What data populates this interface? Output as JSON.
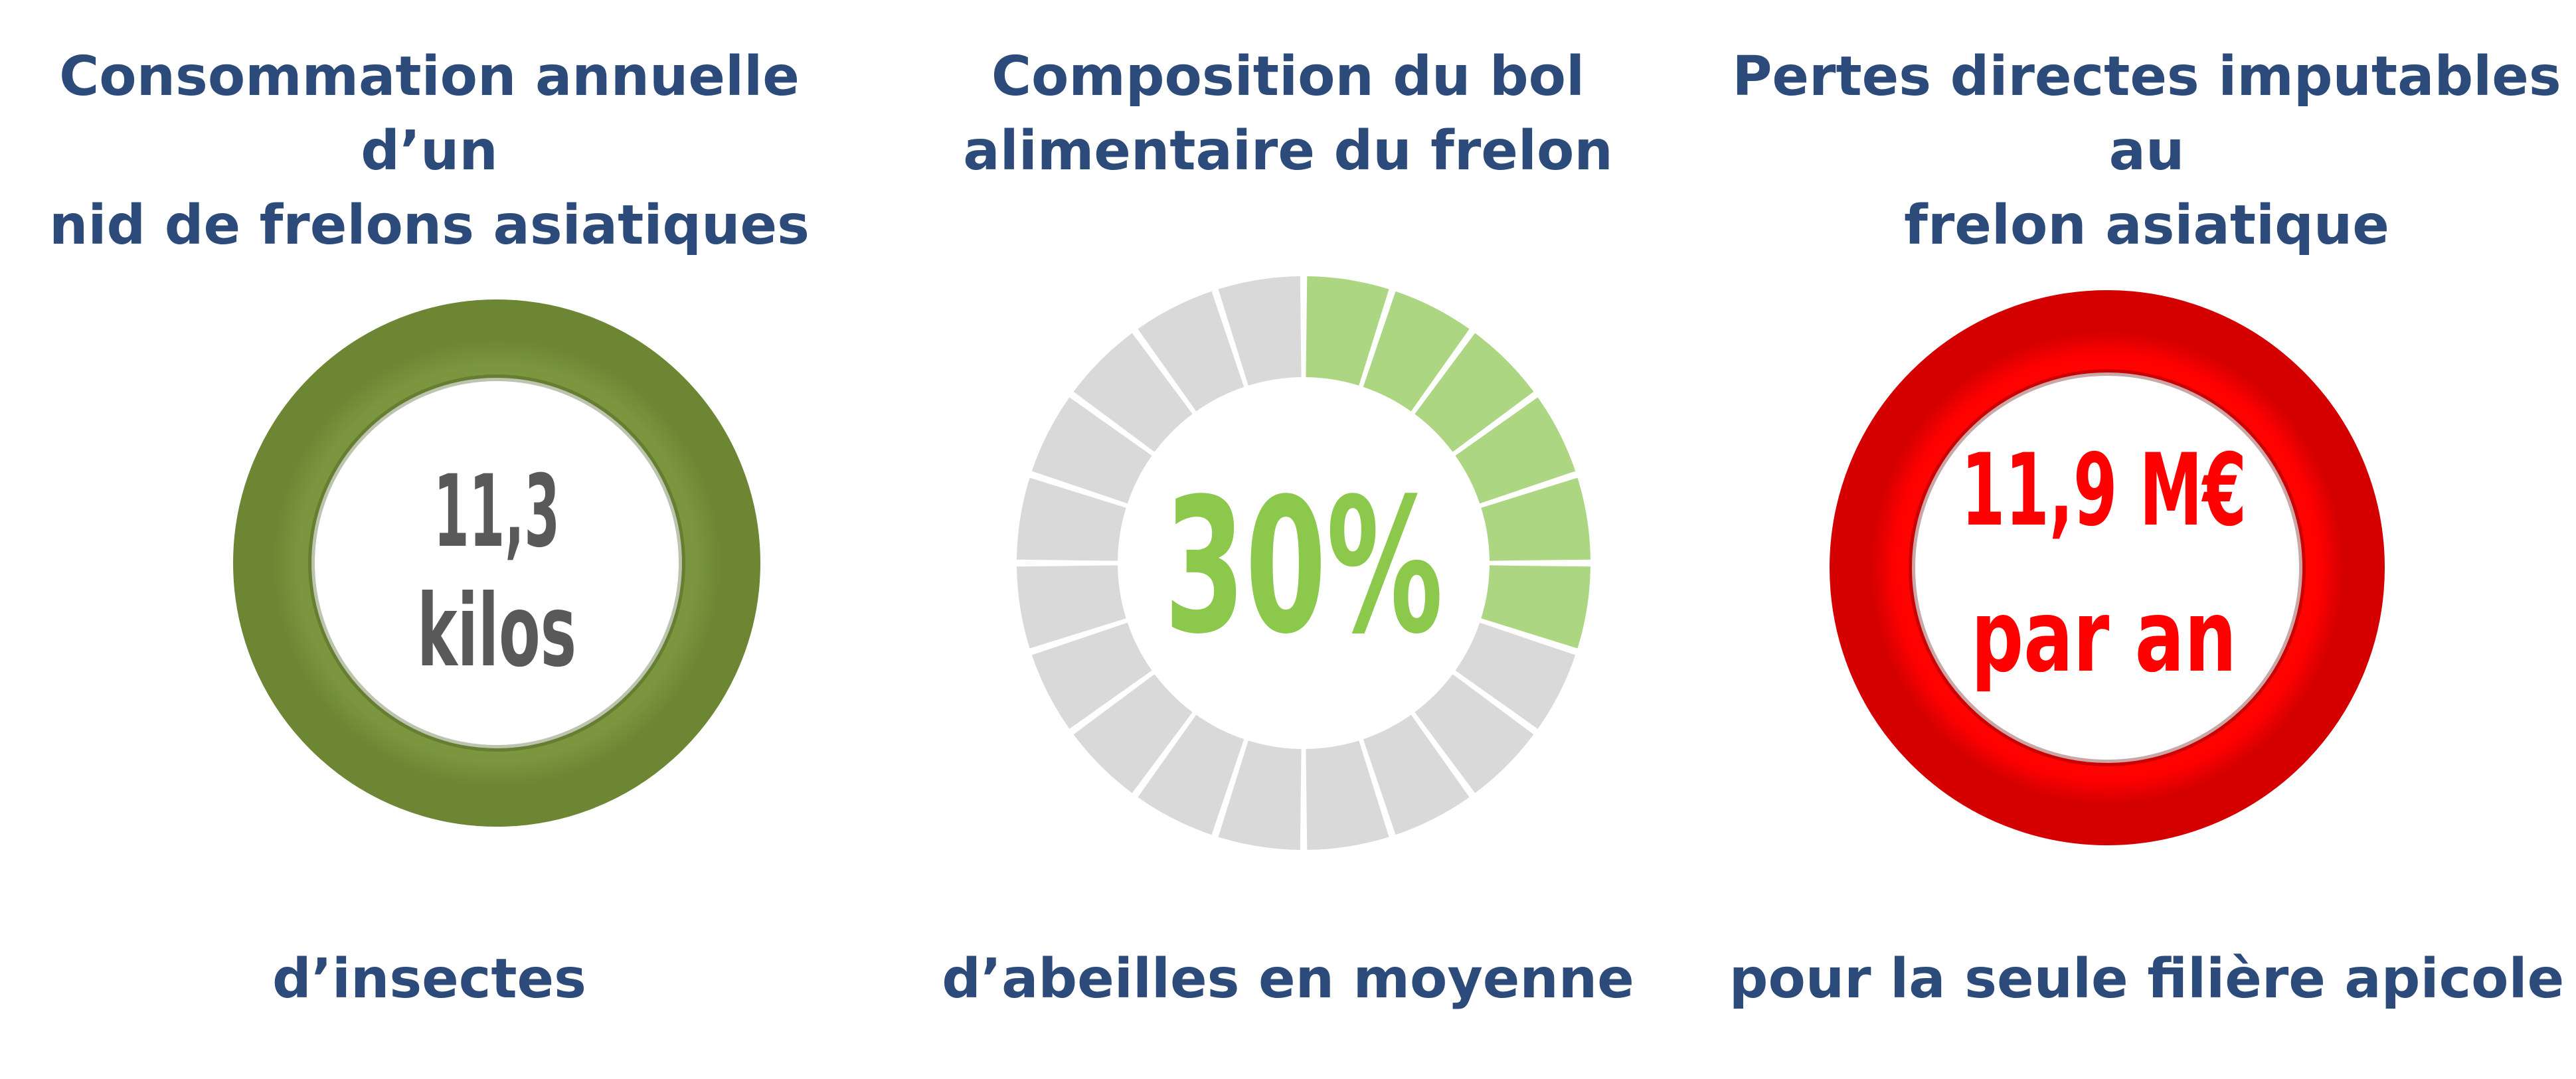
{
  "chart_data": [
    {
      "type": "pie",
      "title_lines": [
        "Consommation annuelle d’un",
        "nid de frelons asiatiques"
      ],
      "value_lines": [
        "11,3",
        "kilos"
      ],
      "caption": "d’insectes",
      "colors": {
        "ring": "#77923c",
        "text": "#595959"
      }
    },
    {
      "type": "pie",
      "title_lines": [
        "Composition du bol",
        "alimentaire du frelon"
      ],
      "value": 30,
      "value_label": "30%",
      "caption": "d’abeilles en moyenne",
      "segments_total": 20,
      "colors": {
        "filled": "#acd682",
        "empty": "#d9d9d9",
        "text": "#8cc84b"
      }
    },
    {
      "type": "pie",
      "title_lines": [
        "Pertes directes imputables au",
        "frelon asiatique"
      ],
      "value_lines": [
        "11,9 M€",
        "par an"
      ],
      "caption": "pour la seule filière apicole",
      "colors": {
        "ring": "#ff0000",
        "text": "#ff0000"
      }
    }
  ]
}
